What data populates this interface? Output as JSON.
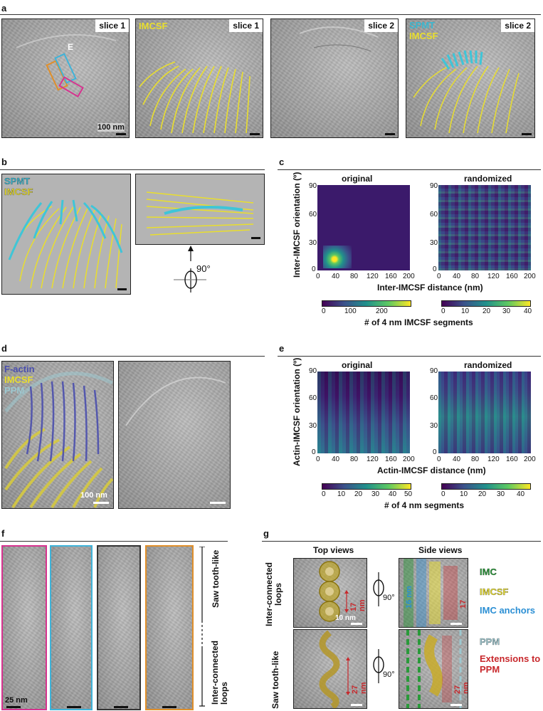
{
  "panels": {
    "a": "a",
    "b": "b",
    "c": "c",
    "d": "d",
    "e": "e",
    "f": "f",
    "g": "g"
  },
  "panel_a": {
    "tiles": [
      {
        "tag": "slice 1",
        "overlay": "",
        "scale": "100 nm",
        "marker": "E"
      },
      {
        "tag": "slice 1",
        "overlay": "IMCSF"
      },
      {
        "tag": "slice 2",
        "overlay": ""
      },
      {
        "tag": "slice 2",
        "overlay_1": "SPMT",
        "overlay_2": "IMCSF"
      }
    ]
  },
  "panel_b": {
    "legend_1": "SPMT",
    "legend_2": "IMCSF",
    "rotation": "90°"
  },
  "panel_c": {
    "ylabel": "Inter-IMCSF orientation (º)",
    "xlabel": "Inter-IMCSF distance (nm)",
    "left_title": "original",
    "right_title": "randomized",
    "yticks": [
      "0",
      "30",
      "60",
      "90"
    ],
    "xticks": [
      "0",
      "40",
      "80",
      "120",
      "160",
      "200"
    ],
    "cbar_left_ticks": [
      "0",
      "100",
      "200"
    ],
    "cbar_right_ticks": [
      "0",
      "10",
      "20",
      "30",
      "40"
    ],
    "cbar_label": "# of 4 nm IMCSF segments"
  },
  "panel_d": {
    "legend_1": "F-actin",
    "legend_2": "IMCSF",
    "legend_3": "PPM",
    "scale": "100 nm"
  },
  "panel_e": {
    "ylabel": "Actin-IMCSF orientation (º)",
    "xlabel": "Actin-IMCSF distance (nm)",
    "left_title": "original",
    "right_title": "randomized",
    "yticks": [
      "0",
      "30",
      "60",
      "90"
    ],
    "xticks": [
      "0",
      "40",
      "80",
      "120",
      "160",
      "200"
    ],
    "cbar_left_ticks": [
      "0",
      "10",
      "20",
      "30",
      "40",
      "50"
    ],
    "cbar_right_ticks": [
      "0",
      "10",
      "20",
      "30",
      "40"
    ],
    "cbar_label": "# of 4 nm segments"
  },
  "panel_f": {
    "scale": "25 nm",
    "label_top": "Saw tooth-like",
    "label_bottom": "Inter-connected loops",
    "frame_colors": [
      "#d6338f",
      "#3fb3d9",
      "#333333",
      "#e08f2a"
    ]
  },
  "panel_g": {
    "top_views": "Top views",
    "side_views": "Side views",
    "row1_label": "Inter-connected loops",
    "row2_label": "Saw tooth-like",
    "m_17": "17 nm",
    "m_10": "10 nm",
    "m_16": "16 nm",
    "m_27": "27 nm",
    "rot": "90°",
    "legend": [
      "IMC",
      "IMCSF",
      "IMC anchors",
      "PPM",
      "Extensions to PPM"
    ],
    "legend_colors": [
      "#2a9a3a",
      "#e9de2d",
      "#2b8fd4",
      "#9cc8d0",
      "#c8282c"
    ]
  },
  "chart_data": [
    {
      "type": "heatmap",
      "title": "original",
      "xlabel": "Inter-IMCSF distance (nm)",
      "ylabel": "Inter-IMCSF orientation (º)",
      "xlim": [
        0,
        200
      ],
      "ylim": [
        0,
        90
      ],
      "colorbar": [
        0,
        250
      ],
      "hotspot": {
        "x": 40,
        "y": 10
      }
    },
    {
      "type": "heatmap",
      "title": "randomized",
      "xlabel": "Inter-IMCSF distance (nm)",
      "ylabel": "Inter-IMCSF orientation (º)",
      "xlim": [
        0,
        200
      ],
      "ylim": [
        0,
        90
      ],
      "colorbar": [
        0,
        40
      ]
    },
    {
      "type": "heatmap",
      "title": "original",
      "xlabel": "Actin-IMCSF distance (nm)",
      "ylabel": "Actin-IMCSF orientation (º)",
      "xlim": [
        0,
        200
      ],
      "ylim": [
        0,
        90
      ],
      "colorbar": [
        0,
        50
      ]
    },
    {
      "type": "heatmap",
      "title": "randomized",
      "xlabel": "Actin-IMCSF distance (nm)",
      "ylabel": "Actin-IMCSF orientation (º)",
      "xlim": [
        0,
        200
      ],
      "ylim": [
        0,
        90
      ],
      "colorbar": [
        0,
        40
      ]
    }
  ]
}
